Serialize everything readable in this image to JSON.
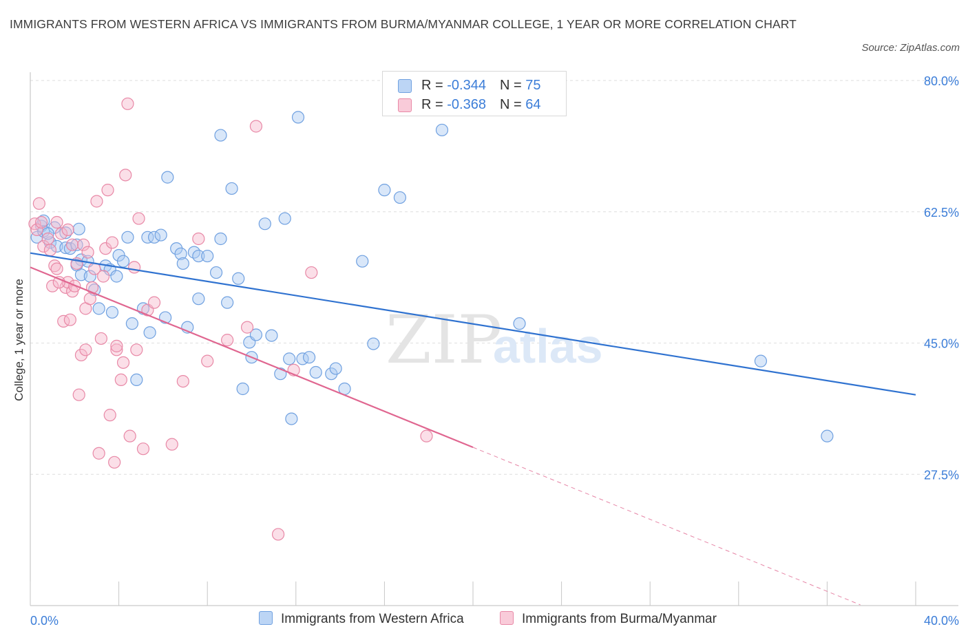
{
  "header": {
    "title": "IMMIGRANTS FROM WESTERN AFRICA VS IMMIGRANTS FROM BURMA/MYANMAR COLLEGE, 1 YEAR OR MORE CORRELATION CHART",
    "source": "Source: ZipAtlas.com"
  },
  "watermark": {
    "zip": "ZIP",
    "atlas": "atlas"
  },
  "legend_top": {
    "r_label": "R =",
    "n_label": "N =",
    "rows": [
      {
        "r": "-0.344",
        "n": "75"
      },
      {
        "r": "-0.368",
        "n": "64"
      }
    ]
  },
  "colors": {
    "blue_fill": "#aac9f2",
    "blue_stroke": "#6fa0e0",
    "blue_line": "#2f72d0",
    "pink_fill": "#f6b9cb",
    "pink_stroke": "#e888a6",
    "pink_line": "#e06690",
    "tick_text": "#3b7dd8",
    "grid": "#dedede"
  },
  "chart_data": {
    "type": "scatter",
    "title": "IMMIGRANTS FROM WESTERN AFRICA VS IMMIGRANTS FROM BURMA/MYANMAR COLLEGE, 1 YEAR OR MORE CORRELATION CHART",
    "xlabel": "",
    "ylabel": "College, 1 year or more",
    "xlim": [
      0,
      40
    ],
    "ylim": [
      10,
      80
    ],
    "x_tick_labels": [
      "0.0%",
      "40.0%"
    ],
    "y_ticks": [
      {
        "value": 80,
        "label": "80.0%"
      },
      {
        "value": 62.5,
        "label": "62.5%"
      },
      {
        "value": 45,
        "label": "45.0%"
      },
      {
        "value": 27.5,
        "label": "27.5%"
      }
    ],
    "grid": true,
    "legend_position": "bottom",
    "series": [
      {
        "name": "Immigrants from Western Africa",
        "r": -0.344,
        "n": 75,
        "trend": {
          "x0": 0,
          "y0": 57.0,
          "x1": 40,
          "y1": 38.1
        },
        "points": [
          [
            0.3,
            59.1
          ],
          [
            0.5,
            60.6
          ],
          [
            0.6,
            59.9
          ],
          [
            0.6,
            61.3
          ],
          [
            0.9,
            58.4
          ],
          [
            1.1,
            60.4
          ],
          [
            1.2,
            57.9
          ],
          [
            1.6,
            57.7
          ],
          [
            1.6,
            59.7
          ],
          [
            1.8,
            57.6
          ],
          [
            2.1,
            58.1
          ],
          [
            2.3,
            56.1
          ],
          [
            2.1,
            55.4
          ],
          [
            2.3,
            54.1
          ],
          [
            2.2,
            60.2
          ],
          [
            2.6,
            55.9
          ],
          [
            2.7,
            53.9
          ],
          [
            2.9,
            52.1
          ],
          [
            3.1,
            49.6
          ],
          [
            3.4,
            55.3
          ],
          [
            3.6,
            54.8
          ],
          [
            3.7,
            49.1
          ],
          [
            3.9,
            53.9
          ],
          [
            4.0,
            56.7
          ],
          [
            4.2,
            55.9
          ],
          [
            4.4,
            59.1
          ],
          [
            4.6,
            47.6
          ],
          [
            4.8,
            40.1
          ],
          [
            5.1,
            49.6
          ],
          [
            5.3,
            59.1
          ],
          [
            5.4,
            46.4
          ],
          [
            5.6,
            59.1
          ],
          [
            5.9,
            59.4
          ],
          [
            6.1,
            48.4
          ],
          [
            6.2,
            67.1
          ],
          [
            6.6,
            57.6
          ],
          [
            6.8,
            56.9
          ],
          [
            6.9,
            55.6
          ],
          [
            7.1,
            47.1
          ],
          [
            7.4,
            57.1
          ],
          [
            7.6,
            56.6
          ],
          [
            7.6,
            50.9
          ],
          [
            8.0,
            56.6
          ],
          [
            8.4,
            54.4
          ],
          [
            8.6,
            58.9
          ],
          [
            8.6,
            72.7
          ],
          [
            8.9,
            50.4
          ],
          [
            9.1,
            65.6
          ],
          [
            9.4,
            53.6
          ],
          [
            9.6,
            38.9
          ],
          [
            9.9,
            45.1
          ],
          [
            10.0,
            43.1
          ],
          [
            10.2,
            46.1
          ],
          [
            10.6,
            60.9
          ],
          [
            10.9,
            46.0
          ],
          [
            11.3,
            40.9
          ],
          [
            11.5,
            61.6
          ],
          [
            11.7,
            42.9
          ],
          [
            11.8,
            34.9
          ],
          [
            12.1,
            75.1
          ],
          [
            12.3,
            42.9
          ],
          [
            12.6,
            43.1
          ],
          [
            12.9,
            41.1
          ],
          [
            13.6,
            40.9
          ],
          [
            13.8,
            41.6
          ],
          [
            14.2,
            38.9
          ],
          [
            15.0,
            55.9
          ],
          [
            15.5,
            44.9
          ],
          [
            16.0,
            65.4
          ],
          [
            16.7,
            64.4
          ],
          [
            18.6,
            73.4
          ],
          [
            22.1,
            47.6
          ],
          [
            33.0,
            42.6
          ],
          [
            36.0,
            32.6
          ],
          [
            0.8,
            59.6
          ]
        ]
      },
      {
        "name": "Immigrants from Burma/Myanmar",
        "r": -0.368,
        "n": 64,
        "trend": {
          "x0": 0,
          "y0": 55.1,
          "x1": 20.0,
          "y1": 31.1
        },
        "trend_dashed": {
          "x0": 20.0,
          "y0": 31.1,
          "x1": 37.5,
          "y1": 10.1
        },
        "points": [
          [
            0.4,
            63.6
          ],
          [
            0.2,
            60.9
          ],
          [
            0.3,
            60.1
          ],
          [
            0.6,
            57.9
          ],
          [
            0.8,
            58.9
          ],
          [
            0.9,
            57.4
          ],
          [
            1.0,
            52.6
          ],
          [
            1.1,
            55.3
          ],
          [
            1.2,
            61.1
          ],
          [
            1.2,
            54.9
          ],
          [
            1.4,
            59.6
          ],
          [
            1.5,
            47.9
          ],
          [
            1.6,
            52.4
          ],
          [
            1.7,
            53.1
          ],
          [
            1.8,
            48.1
          ],
          [
            1.9,
            51.9
          ],
          [
            1.9,
            58.1
          ],
          [
            2.0,
            52.6
          ],
          [
            2.1,
            55.6
          ],
          [
            2.2,
            38.1
          ],
          [
            2.3,
            43.4
          ],
          [
            2.4,
            58.1
          ],
          [
            2.5,
            49.6
          ],
          [
            2.5,
            44.1
          ],
          [
            2.6,
            57.1
          ],
          [
            2.7,
            50.9
          ],
          [
            2.9,
            54.9
          ],
          [
            3.0,
            63.9
          ],
          [
            3.1,
            30.3
          ],
          [
            3.2,
            45.6
          ],
          [
            3.3,
            53.9
          ],
          [
            3.4,
            57.6
          ],
          [
            3.5,
            65.4
          ],
          [
            3.6,
            35.4
          ],
          [
            3.7,
            58.4
          ],
          [
            3.8,
            29.1
          ],
          [
            3.9,
            44.1
          ],
          [
            4.1,
            40.1
          ],
          [
            4.2,
            42.4
          ],
          [
            4.3,
            67.4
          ],
          [
            4.4,
            76.9
          ],
          [
            4.5,
            32.6
          ],
          [
            4.7,
            55.1
          ],
          [
            4.8,
            44.1
          ],
          [
            4.9,
            61.6
          ],
          [
            5.1,
            30.9
          ],
          [
            5.3,
            49.4
          ],
          [
            6.4,
            31.5
          ],
          [
            6.9,
            39.9
          ],
          [
            7.6,
            58.9
          ],
          [
            8.0,
            42.6
          ],
          [
            8.9,
            45.4
          ],
          [
            10.2,
            73.9
          ],
          [
            11.2,
            19.5
          ],
          [
            11.9,
            41.4
          ],
          [
            12.7,
            54.4
          ],
          [
            17.9,
            32.6
          ],
          [
            0.5,
            61.1
          ],
          [
            1.3,
            53.1
          ],
          [
            1.7,
            60.1
          ],
          [
            2.8,
            52.4
          ],
          [
            3.9,
            44.6
          ],
          [
            5.6,
            50.4
          ],
          [
            9.8,
            47.1
          ]
        ]
      }
    ]
  },
  "bottom_legend": [
    {
      "label": "Immigrants from Western Africa"
    },
    {
      "label": "Immigrants from Burma/Myanmar"
    }
  ]
}
